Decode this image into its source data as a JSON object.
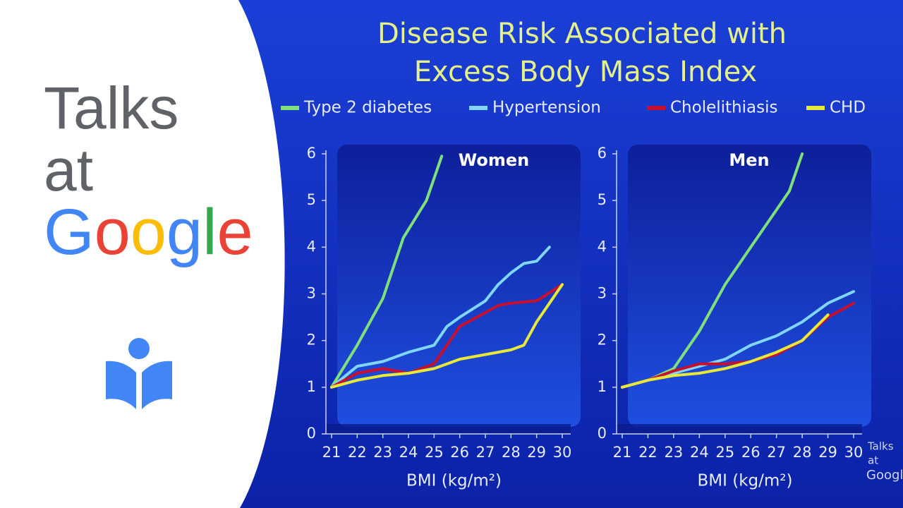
{
  "brand": {
    "lines": [
      "Talks",
      "at",
      "Google"
    ]
  },
  "title_lines": [
    "Disease Risk Associated with",
    "Excess Body Mass Index"
  ],
  "x_label": "BMI (kg/m²)",
  "watermark": [
    "Talks",
    "at",
    "Google"
  ],
  "chart_data": [
    {
      "type": "line",
      "title": "Women",
      "xlim": [
        21,
        30
      ],
      "xticks": [
        21,
        22,
        23,
        24,
        25,
        26,
        27,
        28,
        29,
        30
      ],
      "ylim": [
        0,
        6
      ],
      "yticks": [
        0,
        1,
        2,
        3,
        4,
        5,
        6
      ],
      "series": [
        {
          "name": "Type 2 diabetes",
          "color": "#7fe07a",
          "x": [
            21,
            22,
            23,
            23.8,
            24.7,
            25.3
          ],
          "values": [
            1,
            1.9,
            2.9,
            4.2,
            5.0,
            5.95
          ]
        },
        {
          "name": "Hypertension",
          "color": "#7fd6f5",
          "x": [
            21,
            22,
            23,
            24,
            25,
            25.5,
            26,
            27,
            27.5,
            28,
            28.5,
            29,
            29.5
          ],
          "values": [
            1,
            1.45,
            1.55,
            1.75,
            1.9,
            2.3,
            2.5,
            2.85,
            3.2,
            3.45,
            3.65,
            3.7,
            4.0
          ]
        },
        {
          "name": "Cholelithiasis",
          "color": "#c8102e",
          "x": [
            21,
            22,
            23,
            24,
            25,
            26,
            27,
            27.5,
            28,
            29,
            30
          ],
          "values": [
            1,
            1.3,
            1.4,
            1.3,
            1.5,
            2.3,
            2.6,
            2.75,
            2.8,
            2.85,
            3.2
          ]
        },
        {
          "name": "CHD",
          "color": "#e8e83a",
          "x": [
            21,
            22,
            23,
            24,
            25,
            26,
            27,
            28,
            28.5,
            29,
            30
          ],
          "values": [
            1,
            1.15,
            1.25,
            1.3,
            1.4,
            1.6,
            1.7,
            1.8,
            1.9,
            2.4,
            3.2
          ]
        }
      ]
    },
    {
      "type": "line",
      "title": "Men",
      "xlim": [
        21,
        30
      ],
      "xticks": [
        21,
        22,
        23,
        24,
        25,
        26,
        27,
        28,
        29,
        30
      ],
      "ylim": [
        0,
        6
      ],
      "yticks": [
        0,
        1,
        2,
        3,
        4,
        5,
        6
      ],
      "series": [
        {
          "color": "#7fe07a",
          "x": [
            21,
            22,
            23,
            24,
            25,
            26,
            27,
            27.5,
            28
          ],
          "values": [
            1,
            1.15,
            1.4,
            2.2,
            3.2,
            4.0,
            4.8,
            5.2,
            6.0
          ]
        },
        {
          "color": "#7fd6f5",
          "x": [
            21,
            22,
            23,
            24,
            25,
            26,
            27,
            28,
            29,
            30
          ],
          "values": [
            1,
            1.15,
            1.3,
            1.45,
            1.6,
            1.9,
            2.1,
            2.4,
            2.8,
            3.05
          ]
        },
        {
          "color": "#c8102e",
          "x": [
            21,
            22,
            23,
            24,
            25,
            26,
            27,
            28,
            29,
            30
          ],
          "values": [
            1,
            1.15,
            1.35,
            1.5,
            1.5,
            1.55,
            1.7,
            2.0,
            2.5,
            2.8
          ]
        },
        {
          "color": "#e8e83a",
          "x": [
            21,
            22,
            23,
            24,
            25,
            26,
            27,
            28,
            29
          ],
          "values": [
            1,
            1.15,
            1.25,
            1.3,
            1.4,
            1.55,
            1.75,
            2.0,
            2.55
          ]
        }
      ]
    }
  ]
}
